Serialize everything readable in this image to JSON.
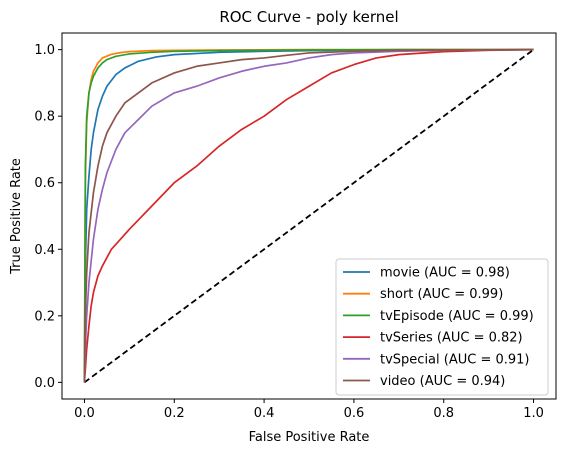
{
  "chart_data": {
    "type": "line",
    "title": "ROC Curve - poly kernel",
    "xlabel": "False Positive Rate",
    "ylabel": "True Positive Rate",
    "xlim": [
      -0.05,
      1.05
    ],
    "ylim": [
      -0.05,
      1.05
    ],
    "xticks": [
      "0.0",
      "0.2",
      "0.4",
      "0.6",
      "0.8",
      "1.0"
    ],
    "yticks": [
      "0.0",
      "0.2",
      "0.4",
      "0.6",
      "0.8",
      "1.0"
    ],
    "grid": false,
    "legend_position": "lower-right",
    "reference_line": {
      "x": [
        0,
        1
      ],
      "y": [
        0,
        1
      ],
      "color": "#000000",
      "style": "dashed"
    },
    "series": [
      {
        "name": "movie (AUC = 0.98)",
        "color": "#1f77b4",
        "x": [
          0,
          0.002,
          0.005,
          0.01,
          0.015,
          0.02,
          0.03,
          0.04,
          0.05,
          0.07,
          0.09,
          0.12,
          0.16,
          0.2,
          0.3,
          0.4,
          0.5,
          0.6,
          0.8,
          1.0
        ],
        "y": [
          0,
          0.35,
          0.52,
          0.62,
          0.7,
          0.75,
          0.82,
          0.86,
          0.89,
          0.925,
          0.945,
          0.965,
          0.978,
          0.985,
          0.992,
          0.995,
          0.997,
          0.998,
          0.999,
          1.0
        ]
      },
      {
        "name": "short (AUC = 0.99)",
        "color": "#ff7f0e",
        "x": [
          0,
          0.002,
          0.005,
          0.01,
          0.015,
          0.02,
          0.03,
          0.04,
          0.06,
          0.08,
          0.1,
          0.15,
          0.2,
          0.3,
          0.5,
          0.7,
          1.0
        ],
        "y": [
          0,
          0.6,
          0.78,
          0.87,
          0.91,
          0.935,
          0.96,
          0.975,
          0.986,
          0.991,
          0.994,
          0.997,
          0.998,
          0.999,
          1.0,
          1.0,
          1.0
        ]
      },
      {
        "name": "tvEpisode (AUC = 0.99)",
        "color": "#2ca02c",
        "x": [
          0,
          0.002,
          0.005,
          0.01,
          0.015,
          0.02,
          0.03,
          0.04,
          0.05,
          0.07,
          0.1,
          0.15,
          0.2,
          0.3,
          0.5,
          0.7,
          1.0
        ],
        "y": [
          0,
          0.65,
          0.8,
          0.87,
          0.9,
          0.92,
          0.945,
          0.96,
          0.97,
          0.98,
          0.987,
          0.992,
          0.995,
          0.997,
          0.999,
          1.0,
          1.0
        ]
      },
      {
        "name": "tvSeries (AUC = 0.82)",
        "color": "#d62728",
        "x": [
          0,
          0.002,
          0.005,
          0.01,
          0.015,
          0.02,
          0.03,
          0.04,
          0.06,
          0.08,
          0.1,
          0.15,
          0.2,
          0.25,
          0.3,
          0.35,
          0.4,
          0.45,
          0.5,
          0.55,
          0.6,
          0.65,
          0.7,
          0.8,
          0.9,
          1.0
        ],
        "y": [
          0,
          0.04,
          0.1,
          0.17,
          0.23,
          0.27,
          0.32,
          0.35,
          0.4,
          0.43,
          0.46,
          0.53,
          0.6,
          0.65,
          0.71,
          0.76,
          0.8,
          0.85,
          0.89,
          0.93,
          0.955,
          0.975,
          0.985,
          0.994,
          0.998,
          1.0
        ]
      },
      {
        "name": "tvSpecial (AUC = 0.91)",
        "color": "#9467bd",
        "x": [
          0,
          0.002,
          0.005,
          0.01,
          0.02,
          0.03,
          0.04,
          0.05,
          0.07,
          0.09,
          0.12,
          0.15,
          0.2,
          0.25,
          0.3,
          0.35,
          0.4,
          0.45,
          0.5,
          0.55,
          0.6,
          0.7,
          0.8,
          1.0
        ],
        "y": [
          0,
          0.1,
          0.2,
          0.3,
          0.43,
          0.52,
          0.58,
          0.63,
          0.7,
          0.75,
          0.79,
          0.83,
          0.87,
          0.89,
          0.915,
          0.935,
          0.95,
          0.96,
          0.975,
          0.985,
          0.99,
          0.995,
          0.998,
          1.0
        ]
      },
      {
        "name": "video (AUC = 0.94)",
        "color": "#8c564b",
        "x": [
          0,
          0.002,
          0.005,
          0.01,
          0.02,
          0.03,
          0.04,
          0.05,
          0.07,
          0.09,
          0.12,
          0.15,
          0.2,
          0.25,
          0.3,
          0.35,
          0.4,
          0.45,
          0.5,
          0.6,
          0.7,
          0.8,
          1.0
        ],
        "y": [
          0,
          0.2,
          0.33,
          0.45,
          0.57,
          0.65,
          0.71,
          0.75,
          0.8,
          0.84,
          0.87,
          0.9,
          0.93,
          0.95,
          0.96,
          0.97,
          0.975,
          0.983,
          0.99,
          0.995,
          0.998,
          0.999,
          1.0
        ]
      }
    ]
  }
}
